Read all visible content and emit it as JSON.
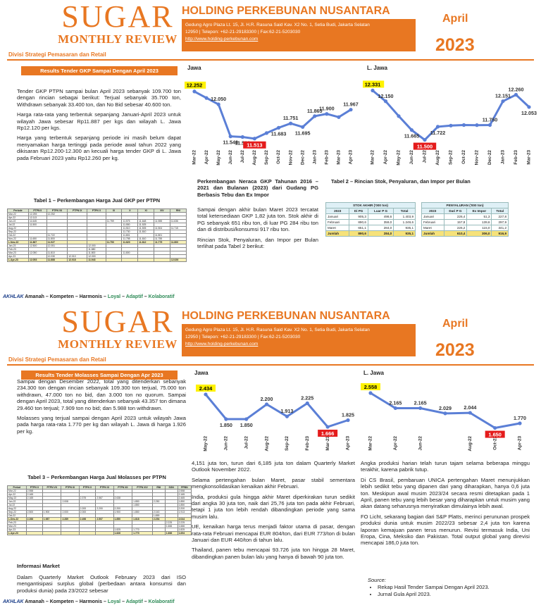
{
  "header": {
    "title": "SUGAR",
    "subtitle": "MONTHLY REVIEW",
    "company": "HOLDING PERKEBUNAN NUSANTARA",
    "address_line1": "Gedung Agro Plaza Lt. 15, Jl. H.R. Rasuna Said Kav. X2 No. 1, Setia Budi, Jakarta Selatan",
    "address_line2": "12950 | Telepon: +62-21-29183300 | Fax:62-21-5203030",
    "website": "http://www.holding-perkebunan.com",
    "month": "April",
    "year": "2023",
    "division": "Divisi Strategi Pemasaran dan Retail"
  },
  "footer": {
    "brand": "AKHLAK",
    "values": [
      "Amanah",
      "Kompeten",
      "Harmonis",
      "Loyal",
      "Adaptif",
      "Kolaboratif"
    ],
    "sep": "–"
  },
  "page1": {
    "banner": "Results Tender GKP Sampai Dengan April 2023",
    "paragraphs": [
      "Tender GKP PTPN sampai bulan April 2023 sebanyak 109.700 ton dengan rincian sebagai berikut: Terjual sebanyak 35.700 ton, Withdrawn sebanyak 33.400 ton, dan No Bid sebesar 40.600 ton.",
      "Harga rata-rata yang terbentuk sepanjang Januari-April 2023 untuk wilayah Jawa sebesar Rp11.887 per kgs dan wilayah L. Jawa Rp12.120 per kgs.",
      "Harga yang terbentuk sepanjang periode ini masih belum dapat menyamakan harga tertinggi pada periode awal tahun 2022 yang dikisaran Rp12.200-12.300 an kecuali harga tender GKP di L. Jawa pada Februari 2023 yaitu Rp12.260 per kg."
    ],
    "table1_caption": "Tabel 1 – Perkembangan Harga Jual GKP per PTPN",
    "table1_headers": [
      "Periode",
      "PTPN II",
      "PTPN VII",
      "PTPN IX",
      "PTPN X",
      "XI",
      "X",
      "XI",
      "XIV",
      "RNI"
    ],
    "table1_rows": [
      [
        "Mar-22",
        "12.255",
        "12.252",
        "",
        "",
        "",
        "",
        "",
        "",
        ""
      ],
      [
        "Apr-22",
        "12.113",
        "",
        "",
        "",
        "",
        "",
        "",
        "",
        ""
      ],
      [
        "Jun-22",
        "11.645",
        "",
        "",
        "",
        "11.759",
        "11.575",
        "11.648",
        "11.555",
        "11.636"
      ],
      [
        "Jul-22",
        "11.500",
        "",
        "",
        "",
        "",
        "11.550",
        "11.525",
        "",
        ""
      ],
      [
        "Aug-22",
        "",
        "",
        "",
        "",
        "",
        "11.510",
        "11.505",
        "11.504",
        "11.715"
      ],
      [
        "Sep-22",
        "",
        "",
        "",
        "",
        "",
        "11.730",
        "11.810",
        "",
        ""
      ],
      [
        "Oct-22",
        "",
        "11.722",
        "",
        "",
        "",
        "11.801",
        "",
        "11.801",
        ""
      ],
      [
        "Nov-22",
        "11.650",
        "11.800",
        "",
        "",
        "",
        "11.798",
        "11.810",
        "11.755",
        ""
      ],
      [
        "L.Nov-22",
        "11.867",
        "11.927",
        "",
        "",
        "11.750",
        "11.820",
        "11.812",
        "11.775",
        "11.800"
      ],
      [
        "Jan-23",
        "12.500",
        "12.051",
        "",
        "12.000",
        "",
        "",
        "",
        "",
        ""
      ],
      [
        "Feb-23",
        "",
        "",
        "",
        "11.880",
        "",
        "",
        "",
        "",
        ""
      ],
      [
        "Mar-23",
        "12.050",
        "11.810",
        "",
        "11.800",
        "",
        "11.800",
        "",
        "",
        ""
      ],
      [
        "Apr-23",
        "",
        "12.030",
        "12.010",
        "12.000",
        "",
        "",
        "",
        "",
        ""
      ],
      [
        "L.Apr-23",
        "12.053",
        "11.888",
        "12.018",
        "11.943",
        "",
        "",
        "",
        "",
        "12.026"
      ]
    ],
    "neraca_title": "Perkembangan Neraca GKP Tahunan 2016 – 2021 dan Bulanan (2023) dari Gudang PG Berbasis Tebu dan Ex Impor",
    "neraca_paragraphs": [
      "Sampai dengan akhir bulan Maret 2023 tercatat total ketersediaan GKP 1,82 juta ton. Stok akhir di PG sebanyak 651 ribu ton, di luar PG 284 ribu ton dan di distribusi/konsumsi 917 ribu ton.",
      "Rincian Stok, Penyaluran, dan Impor per Bulan terlihat pada Tabel 2 berikut:"
    ],
    "table2_caption": "Tabel 2 – Rincian Stok, Penyaluran, dan Impor per Bulan",
    "stok": {
      "title": "STOK AKHIR ('000 ton)",
      "headers": [
        "2023",
        "Di PG",
        "Luar P G",
        "Total"
      ],
      "rows": [
        [
          "Januari",
          "905,3",
          "498,6",
          "1.403,9"
        ],
        [
          "Februari",
          "890,6",
          "359,0",
          "1.249,6"
        ],
        [
          "Maret",
          "651,1",
          "284,0",
          "935,1"
        ]
      ],
      "sum": [
        "Jumlah",
        "890,6",
        "284,0",
        "935,1"
      ]
    },
    "penyaluran": {
      "title": "PENYALURAN ('000 ton)",
      "headers": [
        "2023",
        "Dari P G",
        "Ex Impor",
        "Total"
      ],
      "rows": [
        [
          "Januari",
          "226,4",
          "51,3",
          "227,8"
        ],
        [
          "Februari",
          "157,8",
          "139,6",
          "297,9"
        ],
        [
          "Maret",
          "226,2",
          "115,0",
          "341,2"
        ]
      ],
      "sum": [
        "Jumlah",
        "610,4",
        "306,0",
        "916,9"
      ]
    }
  },
  "page2": {
    "banner": "Results Tender Molasses Sampai Dengan Apr 2023",
    "paragraphs": [
      "Sampai dengan Desember 2022, total yang ditenderkan sebanyak 234.300 ton dengan rincian sebanyak 109.300 ton terjual, 75.000 ton withdrawn, 47.000 ton no bid, dan 3.000 ton no quorum. Sampai dengan April 2023, total yang ditenderkan sebanyak 43.357 ton dimana 29.460 ton terjual; 7.909 ton no bid; dan 5.988 ton withdrawn.",
      "Molasses yang terjual sampai dengan April 2023 untuk wilayah Jawa pada harga rata-rata 1.770 per kg dan wilayah L. Jawa di harga 1.926 per kg."
    ],
    "table3_caption": "Tabel 3 – Perkembangan Harga Jual Molasses per PTPN",
    "table3_headers": [
      "Period",
      "PTPN II",
      "PTPN VII",
      "PTPN IX",
      "PTPN X",
      "PTPN XI",
      "PTPN XII",
      "PTPN XIV",
      "RNI",
      "SGN",
      "PPBN"
    ],
    "table3_rows": [
      [
        "Mar-22",
        "2.558",
        "",
        "",
        "",
        "",
        "",
        "",
        "",
        "",
        "2.558"
      ],
      [
        "Apr-22",
        "2.165",
        "",
        "",
        "",
        "",
        "",
        "",
        "",
        "",
        "2.165"
      ],
      [
        "May-22",
        "2.165",
        "",
        "",
        "2.375",
        "2.567",
        "2.638",
        "",
        "",
        "",
        "2.465"
      ],
      [
        "Jun-22",
        "",
        "",
        "2.008",
        "",
        "",
        "",
        "1.850",
        "2.250",
        "",
        "1.850"
      ],
      [
        "Jul-22",
        "",
        "",
        "",
        "",
        "",
        "",
        "1.850",
        "",
        "",
        "1.850"
      ],
      [
        "Aug-22",
        "",
        "",
        "",
        "2.200",
        "2.200",
        "2.200",
        "",
        "",
        "",
        "2.200"
      ],
      [
        "Sep-22",
        "2.500",
        "1.900",
        "2.000",
        "2.000",
        "",
        "1.900",
        "1.850",
        "2.043",
        "",
        "1.913"
      ],
      [
        "Oct-22",
        "",
        "",
        "",
        "",
        "",
        "",
        "",
        "1.859",
        "",
        ""
      ],
      [
        "L.Des-22",
        "2.266",
        "1.987",
        "2.289",
        "2.496",
        "2.507",
        "1.850",
        "1.818",
        "2.254",
        "",
        "2.044"
      ],
      [
        "Feb-23",
        "",
        "",
        "",
        "",
        "",
        "",
        "",
        "",
        "2.225",
        "2.225"
      ],
      [
        "Mar-23",
        "",
        "",
        "",
        "",
        "",
        "",
        "",
        "",
        "1.666",
        "1.666"
      ],
      [
        "Apr-23",
        "",
        "",
        "",
        "",
        "",
        "1.825",
        "1.770",
        "",
        "",
        "1.825"
      ],
      [
        "L.Apr-23",
        "",
        "",
        "",
        "",
        "",
        "1.826",
        "1.770",
        "",
        "1.666",
        "1.694"
      ]
    ],
    "info_title": "Informasi Market",
    "info_text": "Dalam Quarterly Market Outlook February 2023 dari ISO mengantisipasi surplus global (perbedaan antara konsumsi dan produksi dunia) pada 23/2022 sebesar",
    "mid_paragraphs": [
      "4,151 juta ton, turun dari 6,185 juta ton dalam Quarterly Market Outlook November 2022.",
      "Selama pertengahan bulan Maret, pasar stabil sementara mengkonsolidasikan kenaikan akhir Februari.",
      "India, produksi gula hingga akhir Maret diperkirakan turun sedikit dari angka 30 juta ton, naik dari 25,76 juta ton pada akhir Februari, tetapi 1 juta ton lebih rendah dibandingkan periode yang sama musim lalu.",
      "UE, kenaikan harga terus menjadi faktor utama di pasar, dengan rata-rata Februari mencapai EUR 804/ton, dari EUR 773/ton di bulan Januari dan EUR 440/ton di tahun lalu.",
      "Thailand, panen tebu mencapai 93.726 juta ton hingga 28 Maret, dibandingkan panen bulan lalu yang hanya di bawah 90 juta ton."
    ],
    "right_paragraphs": [
      "Angka produksi harian telah turun tajam selama beberapa minggu terakhir, karena pabrik tutup.",
      "Di CS Brasil, pembaruan UNICA pertengahan Maret menunjukkan lebih sedikit tebu yang dipanen dari yang diharapkan, hanya 0,6 juta ton. Meskipun awal musim 2023/24 secara resmi ditetapkan pada 1 April, panen tebu yang lebih besar yang diharapkan untuk musim yang akan datang seharusnya menyiratkan dimulainya lebih awal.",
      "FO Licht, sekarang bagian dari S&P Platts, merinci perununan prospek produksi dunia untuk musim 2022/23 sebesar 2,4 juta ton karena laporan kemajuan panen terus menurun. Revisi termasuk India, Uni Eropa, Cina, Meksiko dan Pakistan. Total output global yang direvisi mencapai 186,0 juta ton."
    ],
    "source_label": "Source:",
    "sources": [
      "Rekap Hasil Tender Sampai Dengan April 2023.",
      "Jurnal Gula April 2023."
    ]
  },
  "chart_data": [
    {
      "type": "line",
      "title": "Jawa",
      "categories": [
        "Mar-22",
        "Apr-22",
        "May-22",
        "Jun-22",
        "Jul-22",
        "Aug-22",
        "Sep-22",
        "Oct-22",
        "Nov-22",
        "Dec-22",
        "Jan-23",
        "Feb-23",
        "Mar-23",
        "Apr-23"
      ],
      "values": [
        12252,
        12150,
        12050,
        11548,
        11538,
        11513,
        11600,
        11683,
        11751,
        11695,
        11865,
        11900,
        11850,
        11967
      ],
      "labeled_points": [
        [
          0,
          "12.252"
        ],
        [
          2,
          "12.050"
        ],
        [
          3,
          "11.548"
        ],
        [
          4,
          "11.538"
        ],
        [
          5,
          "11.513"
        ],
        [
          7,
          "11.683"
        ],
        [
          8,
          "11.751"
        ],
        [
          9,
          "11.695"
        ],
        [
          10,
          "11.865"
        ],
        [
          11,
          "11.900"
        ],
        [
          13,
          "11.967"
        ]
      ],
      "highlight_max": "12.252",
      "highlight_min": "11.513",
      "ylim": [
        11400,
        12350
      ]
    },
    {
      "type": "line",
      "title": "L. Jawa",
      "categories": [
        "Mar-22",
        "Apr-22",
        "May-22",
        "Jun-22",
        "Jul-22",
        "Aug-22",
        "Sep-22",
        "Oct-22",
        "Nov-22",
        "Dec-22",
        "Jan-23",
        "Feb-23",
        "Mar-23"
      ],
      "values": [
        12331,
        12150,
        11900,
        11665,
        11500,
        11722,
        11740,
        11750,
        11748,
        11750,
        12151,
        12260,
        12053
      ],
      "labeled_points": [
        [
          0,
          "12.331"
        ],
        [
          1,
          "12.150"
        ],
        [
          3,
          "11.665"
        ],
        [
          4,
          "11.500"
        ],
        [
          5,
          "11.722"
        ],
        [
          9,
          "11.750"
        ],
        [
          10,
          "12.151"
        ],
        [
          11,
          "12.260"
        ],
        [
          12,
          "12.053"
        ]
      ],
      "highlight_max": "12.331",
      "highlight_min": "11.500",
      "ylim": [
        11400,
        12420
      ]
    },
    {
      "type": "line",
      "title": "Jawa",
      "categories": [
        "May-22",
        "Jun-22",
        "Jul-22",
        "Aug-22",
        "Sep-22",
        "Feb-23",
        "Mar-23",
        "Apr-23"
      ],
      "values": [
        2434,
        1850,
        1850,
        2200,
        1913,
        2225,
        1666,
        1825
      ],
      "labeled_points": [
        [
          0,
          "2.434"
        ],
        [
          1,
          "1.850"
        ],
        [
          2,
          "1.850"
        ],
        [
          3,
          "2.200"
        ],
        [
          4,
          "1.913"
        ],
        [
          5,
          "2.225"
        ],
        [
          6,
          "1.666"
        ],
        [
          7,
          "1.825"
        ]
      ],
      "highlight_max": "2.434",
      "highlight_min": "1.666",
      "ylim": [
        1550,
        2550
      ]
    },
    {
      "type": "line",
      "title": "L. Jawa",
      "categories": [
        "Mar-22",
        "Apr-22",
        "May-22",
        "Jun-22",
        "Jul-22",
        "Oct-22",
        "Apr-23"
      ],
      "values": [
        2558,
        2165,
        2165,
        2029,
        2044,
        1650,
        1770
      ],
      "x_labels": [
        "Mar-22",
        "Apr-22",
        "Jun-22",
        "Aug-22",
        "Oct-22",
        "Apr-23"
      ],
      "labeled_points": [
        [
          0,
          "2.558"
        ],
        [
          1,
          "2.165"
        ],
        [
          2,
          "2.165"
        ],
        [
          3,
          "2.029"
        ],
        [
          4,
          "2.044"
        ],
        [
          5,
          "1.650"
        ],
        [
          6,
          "1.770"
        ]
      ],
      "highlight_max": "2.558",
      "highlight_min": "1.650",
      "ylim": [
        1550,
        2650
      ]
    }
  ]
}
